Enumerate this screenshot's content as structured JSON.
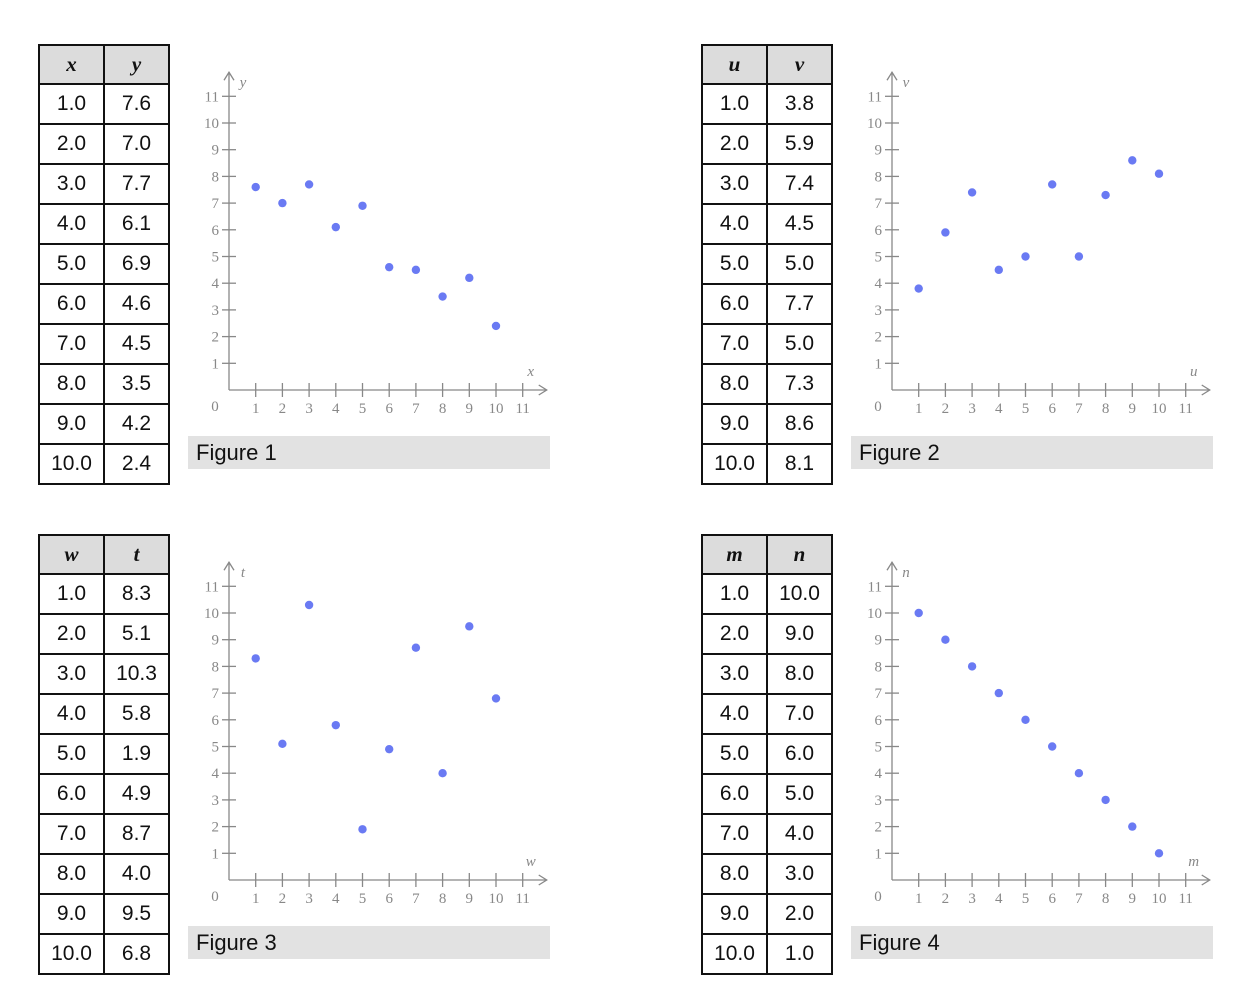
{
  "colors": {
    "axis": "#888888",
    "point": "#5a6cf2",
    "caption_bg": "#e2e2e2",
    "header_bg": "#dcdcdc"
  },
  "chart_data": [
    {
      "type": "scatter",
      "title": "Figure 1",
      "xlabel": "x",
      "ylabel": "y",
      "xlim": [
        0,
        11
      ],
      "ylim": [
        0,
        11
      ],
      "xticks": [
        1,
        2,
        3,
        4,
        5,
        6,
        7,
        8,
        9,
        10,
        11
      ],
      "yticks": [
        1,
        2,
        3,
        4,
        5,
        6,
        7,
        8,
        9,
        10,
        11
      ],
      "origin_label": "0",
      "table": {
        "headers": [
          "x",
          "y"
        ],
        "rows": [
          [
            "1.0",
            "7.6"
          ],
          [
            "2.0",
            "7.0"
          ],
          [
            "3.0",
            "7.7"
          ],
          [
            "4.0",
            "6.1"
          ],
          [
            "5.0",
            "6.9"
          ],
          [
            "6.0",
            "4.6"
          ],
          [
            "7.0",
            "4.5"
          ],
          [
            "8.0",
            "3.5"
          ],
          [
            "9.0",
            "4.2"
          ],
          [
            "10.0",
            "2.4"
          ]
        ]
      },
      "x": [
        1,
        2,
        3,
        4,
        5,
        6,
        7,
        8,
        9,
        10
      ],
      "y": [
        7.6,
        7.0,
        7.7,
        6.1,
        6.9,
        4.6,
        4.5,
        3.5,
        4.2,
        2.4
      ]
    },
    {
      "type": "scatter",
      "title": "Figure 2",
      "xlabel": "u",
      "ylabel": "v",
      "xlim": [
        0,
        11
      ],
      "ylim": [
        0,
        11
      ],
      "xticks": [
        1,
        2,
        3,
        4,
        5,
        6,
        7,
        8,
        9,
        10,
        11
      ],
      "yticks": [
        1,
        2,
        3,
        4,
        5,
        6,
        7,
        8,
        9,
        10,
        11
      ],
      "origin_label": "0",
      "table": {
        "headers": [
          "u",
          "v"
        ],
        "rows": [
          [
            "1.0",
            "3.8"
          ],
          [
            "2.0",
            "5.9"
          ],
          [
            "3.0",
            "7.4"
          ],
          [
            "4.0",
            "4.5"
          ],
          [
            "5.0",
            "5.0"
          ],
          [
            "6.0",
            "7.7"
          ],
          [
            "7.0",
            "5.0"
          ],
          [
            "8.0",
            "7.3"
          ],
          [
            "9.0",
            "8.6"
          ],
          [
            "10.0",
            "8.1"
          ]
        ]
      },
      "x": [
        1,
        2,
        3,
        4,
        5,
        6,
        7,
        8,
        9,
        10
      ],
      "y": [
        3.8,
        5.9,
        7.4,
        4.5,
        5.0,
        7.7,
        5.0,
        7.3,
        8.6,
        8.1
      ]
    },
    {
      "type": "scatter",
      "title": "Figure 3",
      "xlabel": "w",
      "ylabel": "t",
      "xlim": [
        0,
        11
      ],
      "ylim": [
        0,
        11
      ],
      "xticks": [
        1,
        2,
        3,
        4,
        5,
        6,
        7,
        8,
        9,
        10,
        11
      ],
      "yticks": [
        1,
        2,
        3,
        4,
        5,
        6,
        7,
        8,
        9,
        10,
        11
      ],
      "origin_label": "0",
      "table": {
        "headers": [
          "w",
          "t"
        ],
        "rows": [
          [
            "1.0",
            "8.3"
          ],
          [
            "2.0",
            "5.1"
          ],
          [
            "3.0",
            "10.3"
          ],
          [
            "4.0",
            "5.8"
          ],
          [
            "5.0",
            "1.9"
          ],
          [
            "6.0",
            "4.9"
          ],
          [
            "7.0",
            "8.7"
          ],
          [
            "8.0",
            "4.0"
          ],
          [
            "9.0",
            "9.5"
          ],
          [
            "10.0",
            "6.8"
          ]
        ]
      },
      "x": [
        1,
        2,
        3,
        4,
        5,
        6,
        7,
        8,
        9,
        10
      ],
      "y": [
        8.3,
        5.1,
        10.3,
        5.8,
        1.9,
        4.9,
        8.7,
        4.0,
        9.5,
        6.8
      ]
    },
    {
      "type": "scatter",
      "title": "Figure 4",
      "xlabel": "m",
      "ylabel": "n",
      "xlim": [
        0,
        11
      ],
      "ylim": [
        0,
        11
      ],
      "xticks": [
        1,
        2,
        3,
        4,
        5,
        6,
        7,
        8,
        9,
        10,
        11
      ],
      "yticks": [
        1,
        2,
        3,
        4,
        5,
        6,
        7,
        8,
        9,
        10,
        11
      ],
      "origin_label": "0",
      "table": {
        "headers": [
          "m",
          "n"
        ],
        "rows": [
          [
            "1.0",
            "10.0"
          ],
          [
            "2.0",
            "9.0"
          ],
          [
            "3.0",
            "8.0"
          ],
          [
            "4.0",
            "7.0"
          ],
          [
            "5.0",
            "6.0"
          ],
          [
            "6.0",
            "5.0"
          ],
          [
            "7.0",
            "4.0"
          ],
          [
            "8.0",
            "3.0"
          ],
          [
            "9.0",
            "2.0"
          ],
          [
            "10.0",
            "1.0"
          ]
        ]
      },
      "x": [
        1,
        2,
        3,
        4,
        5,
        6,
        7,
        8,
        9,
        10
      ],
      "y": [
        10.0,
        9.0,
        8.0,
        7.0,
        6.0,
        5.0,
        4.0,
        3.0,
        2.0,
        1.0
      ]
    }
  ]
}
